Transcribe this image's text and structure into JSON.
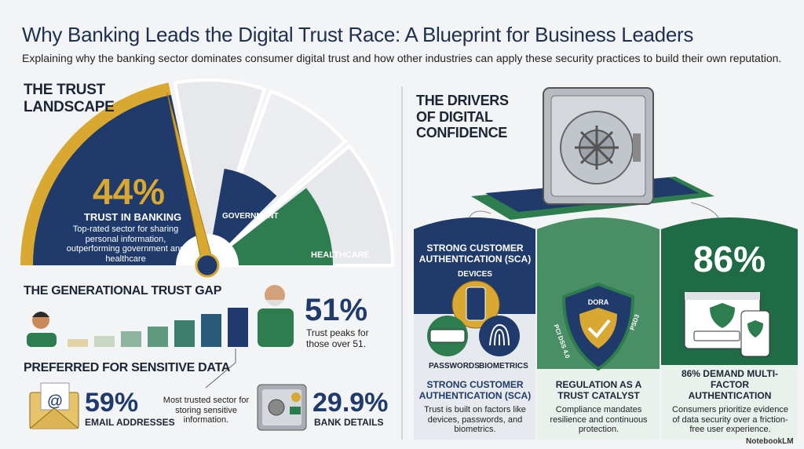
{
  "header": {
    "title": "Why Banking Leads the Digital Trust Race: A Blueprint for Business Leaders",
    "subtitle": "Explaining why the banking sector dominates consumer digital trust and how other industries can apply these security practices to build their own reputation."
  },
  "trust_landscape": {
    "heading": "THE TRUST LANDSCAPE",
    "banking_value": "44%",
    "banking_label": "TRUST IN BANKING",
    "banking_note": "Top-rated sector for sharing personal information, outperforming government and healthcare",
    "government": "GOVERNMENT",
    "healthcare": "HEALTHCARE"
  },
  "generational_gap": {
    "heading": "THE GENERATIONAL TRUST GAP",
    "value": "51%",
    "note": "Trust peaks for those over 51."
  },
  "sensitive_data": {
    "heading": "PREFERRED FOR SENSITIVE DATA",
    "email_value": "59%",
    "email_label": "EMAIL ADDRESSES",
    "note": "Most trusted sector for storing sensitive information.",
    "bank_value": "29.9%",
    "bank_label": "BANK DETAILS"
  },
  "drivers": {
    "heading": "THE DRIVERS OF DIGITAL CONFIDENCE",
    "columns": [
      {
        "badge": "STRONG CUSTOMER AUTHENTICATION (SCA)",
        "devices": "DEVICES",
        "passwords": "PASSWORDS",
        "biometrics": "BIOMETRICS",
        "title": "STRONG CUSTOMER AUTHENTICATION (SCA)",
        "description": "Trust is built on factors like devices, passwords, and biometrics."
      },
      {
        "shield_top": "DORA",
        "shield_left": "PCI DSS 4.0",
        "shield_right": "PSD3",
        "title": "REGULATION AS A TRUST CATALYST",
        "description": "Compliance mandates resilience and continuous protection."
      },
      {
        "value": "86%",
        "title": "86% DEMAND MULTI-FACTOR AUTHENTICATION",
        "description": "Consumers prioritize evidence of data security over a friction-free user experience."
      }
    ]
  },
  "footer": "NotebookLM"
}
